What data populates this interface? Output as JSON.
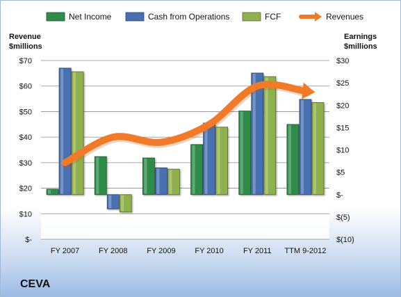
{
  "company_label": "CEVA",
  "chart_data": {
    "type": "bar",
    "categories": [
      "FY 2007",
      "FY 2008",
      "FY 2009",
      "FY 2010",
      "FY 2011",
      "TTM 9-2012"
    ],
    "series": [
      {
        "name": "Net Income",
        "axis": "right",
        "values": [
          1.2,
          8.5,
          8.2,
          11.2,
          18.7,
          15.7
        ],
        "color": "#2e8b4a"
      },
      {
        "name": "Cash from Operations",
        "axis": "right",
        "values": [
          28.3,
          -3.2,
          6.0,
          16.0,
          27.2,
          21.3
        ],
        "color": "#4a6fb0"
      },
      {
        "name": "FCF",
        "axis": "right",
        "values": [
          27.5,
          -3.9,
          5.7,
          15.1,
          26.4,
          20.6
        ],
        "color": "#8fb04e"
      },
      {
        "name": "Revenues",
        "axis": "left",
        "type": "line",
        "values": [
          30,
          40,
          38,
          45,
          60,
          58
        ],
        "color": "#f07a28"
      }
    ],
    "left_axis": {
      "label_line1": "Revenue",
      "label_line2": "$millions",
      "ylim": [
        0,
        70
      ],
      "ticks": [
        "$-",
        "$10",
        "$20",
        "$30",
        "$40",
        "$50",
        "$60",
        "$70"
      ]
    },
    "right_axis": {
      "label_line1": "Earnings",
      "label_line2": "$millions",
      "ylim": [
        -10,
        30
      ],
      "ticks": [
        "$(10)",
        "$(5)",
        "$-",
        "$5",
        "$10",
        "$15",
        "$20",
        "$25",
        "$30"
      ]
    },
    "grid": true,
    "legend": "top"
  }
}
